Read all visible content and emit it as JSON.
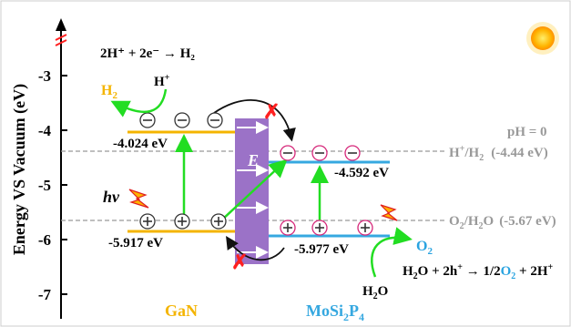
{
  "axis": {
    "ylabel": "Energy VS Vacuum (eV)",
    "ticks": [
      "-3",
      "-4",
      "-5",
      "-6",
      "-7"
    ]
  },
  "materials": {
    "left": "GaN",
    "right_prefix": "MoSi",
    "right_sub1": "2",
    "right_mid": "P",
    "right_sub2": "4"
  },
  "levels": {
    "gan_cbm": "-4.024  eV",
    "gan_vbm": "-5.917  eV",
    "mosi_cbm": "-4.592  eV",
    "mosi_vbm": "-5.977  eV"
  },
  "potentials": {
    "ph": "pH = 0",
    "h_redox_a": "H",
    "h_redox_b": "/H",
    "h_redox_sub": "2",
    "h_redox_value": "(-4.44 eV)",
    "o_redox_a": "O",
    "o_redox_sub": "2",
    "o_redox_b": "/H",
    "o_redox_sub2": "2",
    "o_redox_c": "O",
    "o_redox_value": "(-5.67 eV)"
  },
  "reactions": {
    "her": "2H⁺ + 2e⁻ → H₂",
    "h_plus": "H",
    "h2": "H",
    "h2_sub": "2",
    "o2": "O",
    "o2_sub": "2",
    "water": "H",
    "water_sub": "2",
    "water_tail": "O",
    "oer_a": "H",
    "oer_sub1": "2",
    "oer_b": "O + 2h",
    "oer_c": " → 1/2",
    "oer_o2": "O",
    "oer_o2_sub": "2",
    "oer_d": " + 2H"
  },
  "labels": {
    "hv": "hv",
    "field": "E",
    "electron": "−",
    "hole": "+",
    "cross": "✗"
  },
  "colors": {
    "gan_band": "#f4b400",
    "mosi_band": "#36a8e0",
    "barrier": "#9b72c7",
    "electron_mosi": "#d6287a",
    "green_arrow": "#22dd22",
    "cross": "#ff2020",
    "h2_text": "#f4b400",
    "o2_text": "#29a3e0",
    "dashed": "#999999"
  }
}
